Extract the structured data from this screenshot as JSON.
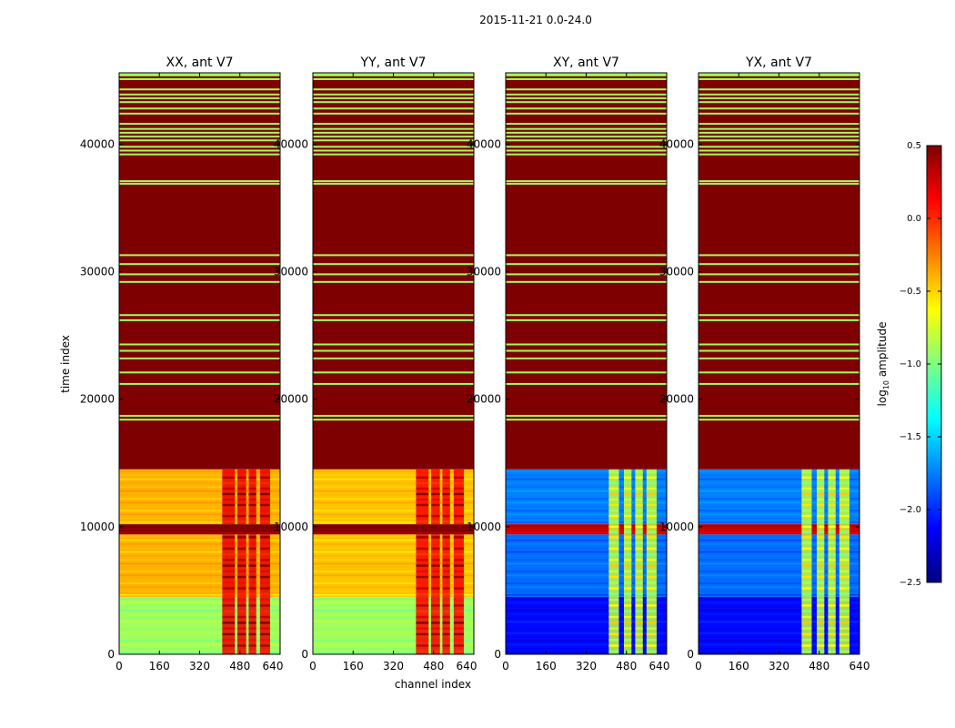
{
  "chart_data": {
    "type": "heatmap",
    "title": "2015-11-21 0.0-24.0",
    "xlabel": "channel index",
    "ylabel": "time index",
    "xlim": [
      0,
      640
    ],
    "ylim": [
      0,
      45600
    ],
    "x_ticks": [
      0,
      160,
      320,
      480,
      640
    ],
    "y_ticks": [
      0,
      10000,
      20000,
      30000,
      40000
    ],
    "colorbar": {
      "label": "log10 amplitude",
      "label_base": "log",
      "label_sub": "10",
      "label_rest": " amplitude",
      "vmin": -2.5,
      "vmax": 0.5,
      "ticks": [
        {
          "value": 0.5,
          "label": "0.5"
        },
        {
          "value": 0.0,
          "label": "0.0"
        },
        {
          "value": -0.5,
          "label": "−0.5"
        },
        {
          "value": -1.0,
          "label": "−1.0"
        },
        {
          "value": -1.5,
          "label": "−1.5"
        },
        {
          "value": -2.0,
          "label": "−2.0"
        },
        {
          "value": -2.5,
          "label": "−2.5"
        }
      ],
      "colors": [
        "#00007f",
        "#0000ff",
        "#007fff",
        "#00ffff",
        "#7fff7f",
        "#ffff00",
        "#ff7f00",
        "#ff0000",
        "#7f0000"
      ]
    },
    "panels": [
      {
        "name": "XX, ant V7",
        "flagged_range": [
          14500,
          45600
        ],
        "flagged_value": 0.5,
        "flag_gaps_value": -0.9,
        "flag_gap_rows": [
          45400,
          45100,
          44300,
          43900,
          43600,
          43300,
          42800,
          42400,
          41600,
          41200,
          40900,
          40600,
          40300,
          39800,
          39500,
          39200,
          37100,
          36900,
          31300,
          30600,
          29800,
          29200,
          26600,
          26200,
          24300,
          23800,
          23200,
          22100,
          21200,
          18700,
          18400
        ],
        "segments": [
          {
            "t0": 0,
            "t1": 4500,
            "background": -0.9
          },
          {
            "t0": 4500,
            "t1": 9400,
            "background": -0.4
          },
          {
            "t0": 9400,
            "t1": 10200,
            "background": 0.5
          },
          {
            "t0": 10200,
            "t1": 14500,
            "background": -0.4
          }
        ],
        "hot_band_channels": [
          [
            410,
            460
          ],
          [
            470,
            505
          ],
          [
            515,
            545
          ],
          [
            560,
            600
          ]
        ],
        "hot_band_value": 0.2
      },
      {
        "name": "YY, ant V7",
        "flagged_range": [
          14500,
          45600
        ],
        "flagged_value": 0.5,
        "flag_gaps_value": -0.9,
        "flag_gap_rows": [
          45400,
          45100,
          44300,
          43900,
          43600,
          43300,
          42800,
          42400,
          41600,
          41200,
          40900,
          40600,
          40300,
          39800,
          39500,
          39200,
          37100,
          36900,
          31300,
          30600,
          29800,
          29200,
          26600,
          26200,
          24300,
          23800,
          23200,
          22100,
          21200,
          18700,
          18400
        ],
        "segments": [
          {
            "t0": 0,
            "t1": 4500,
            "background": -0.9
          },
          {
            "t0": 4500,
            "t1": 9400,
            "background": -0.45
          },
          {
            "t0": 9400,
            "t1": 10200,
            "background": 0.5
          },
          {
            "t0": 10200,
            "t1": 14500,
            "background": -0.45
          }
        ],
        "hot_band_channels": [
          [
            410,
            460
          ],
          [
            470,
            505
          ],
          [
            515,
            545
          ],
          [
            560,
            600
          ]
        ],
        "hot_band_value": 0.15
      },
      {
        "name": "XY, ant V7",
        "flagged_range": [
          14500,
          45600
        ],
        "flagged_value": 0.5,
        "flag_gaps_value": -0.9,
        "flag_gap_rows": [
          45400,
          45100,
          44300,
          43900,
          43600,
          43300,
          42800,
          42400,
          41600,
          41200,
          40900,
          40600,
          40300,
          39800,
          39500,
          39200,
          37100,
          36900,
          31300,
          30600,
          29800,
          29200,
          26600,
          26200,
          24300,
          23800,
          23200,
          22100,
          21200,
          18700,
          18400
        ],
        "segments": [
          {
            "t0": 0,
            "t1": 4500,
            "background": -2.1
          },
          {
            "t0": 4500,
            "t1": 9400,
            "background": -1.8
          },
          {
            "t0": 9400,
            "t1": 10200,
            "background": 0.3
          },
          {
            "t0": 10200,
            "t1": 14500,
            "background": -1.75
          }
        ],
        "hot_band_channels": [
          [
            410,
            450
          ],
          [
            470,
            500
          ],
          [
            515,
            545
          ],
          [
            560,
            600
          ]
        ],
        "hot_band_value": -0.8
      },
      {
        "name": "YX, ant V7",
        "flagged_range": [
          14500,
          45600
        ],
        "flagged_value": 0.5,
        "flag_gaps_value": -0.9,
        "flag_gap_rows": [
          45400,
          45100,
          44300,
          43900,
          43600,
          43300,
          42800,
          42400,
          41600,
          41200,
          40900,
          40600,
          40300,
          39800,
          39500,
          39200,
          37100,
          36900,
          31300,
          30600,
          29800,
          29200,
          26600,
          26200,
          24300,
          23800,
          23200,
          22100,
          21200,
          18700,
          18400
        ],
        "segments": [
          {
            "t0": 0,
            "t1": 4500,
            "background": -2.1
          },
          {
            "t0": 4500,
            "t1": 9400,
            "background": -1.8
          },
          {
            "t0": 9400,
            "t1": 10200,
            "background": 0.3
          },
          {
            "t0": 10200,
            "t1": 14500,
            "background": -1.75
          }
        ],
        "hot_band_channels": [
          [
            410,
            450
          ],
          [
            470,
            500
          ],
          [
            515,
            545
          ],
          [
            560,
            600
          ]
        ],
        "hot_band_value": -0.8
      }
    ]
  }
}
